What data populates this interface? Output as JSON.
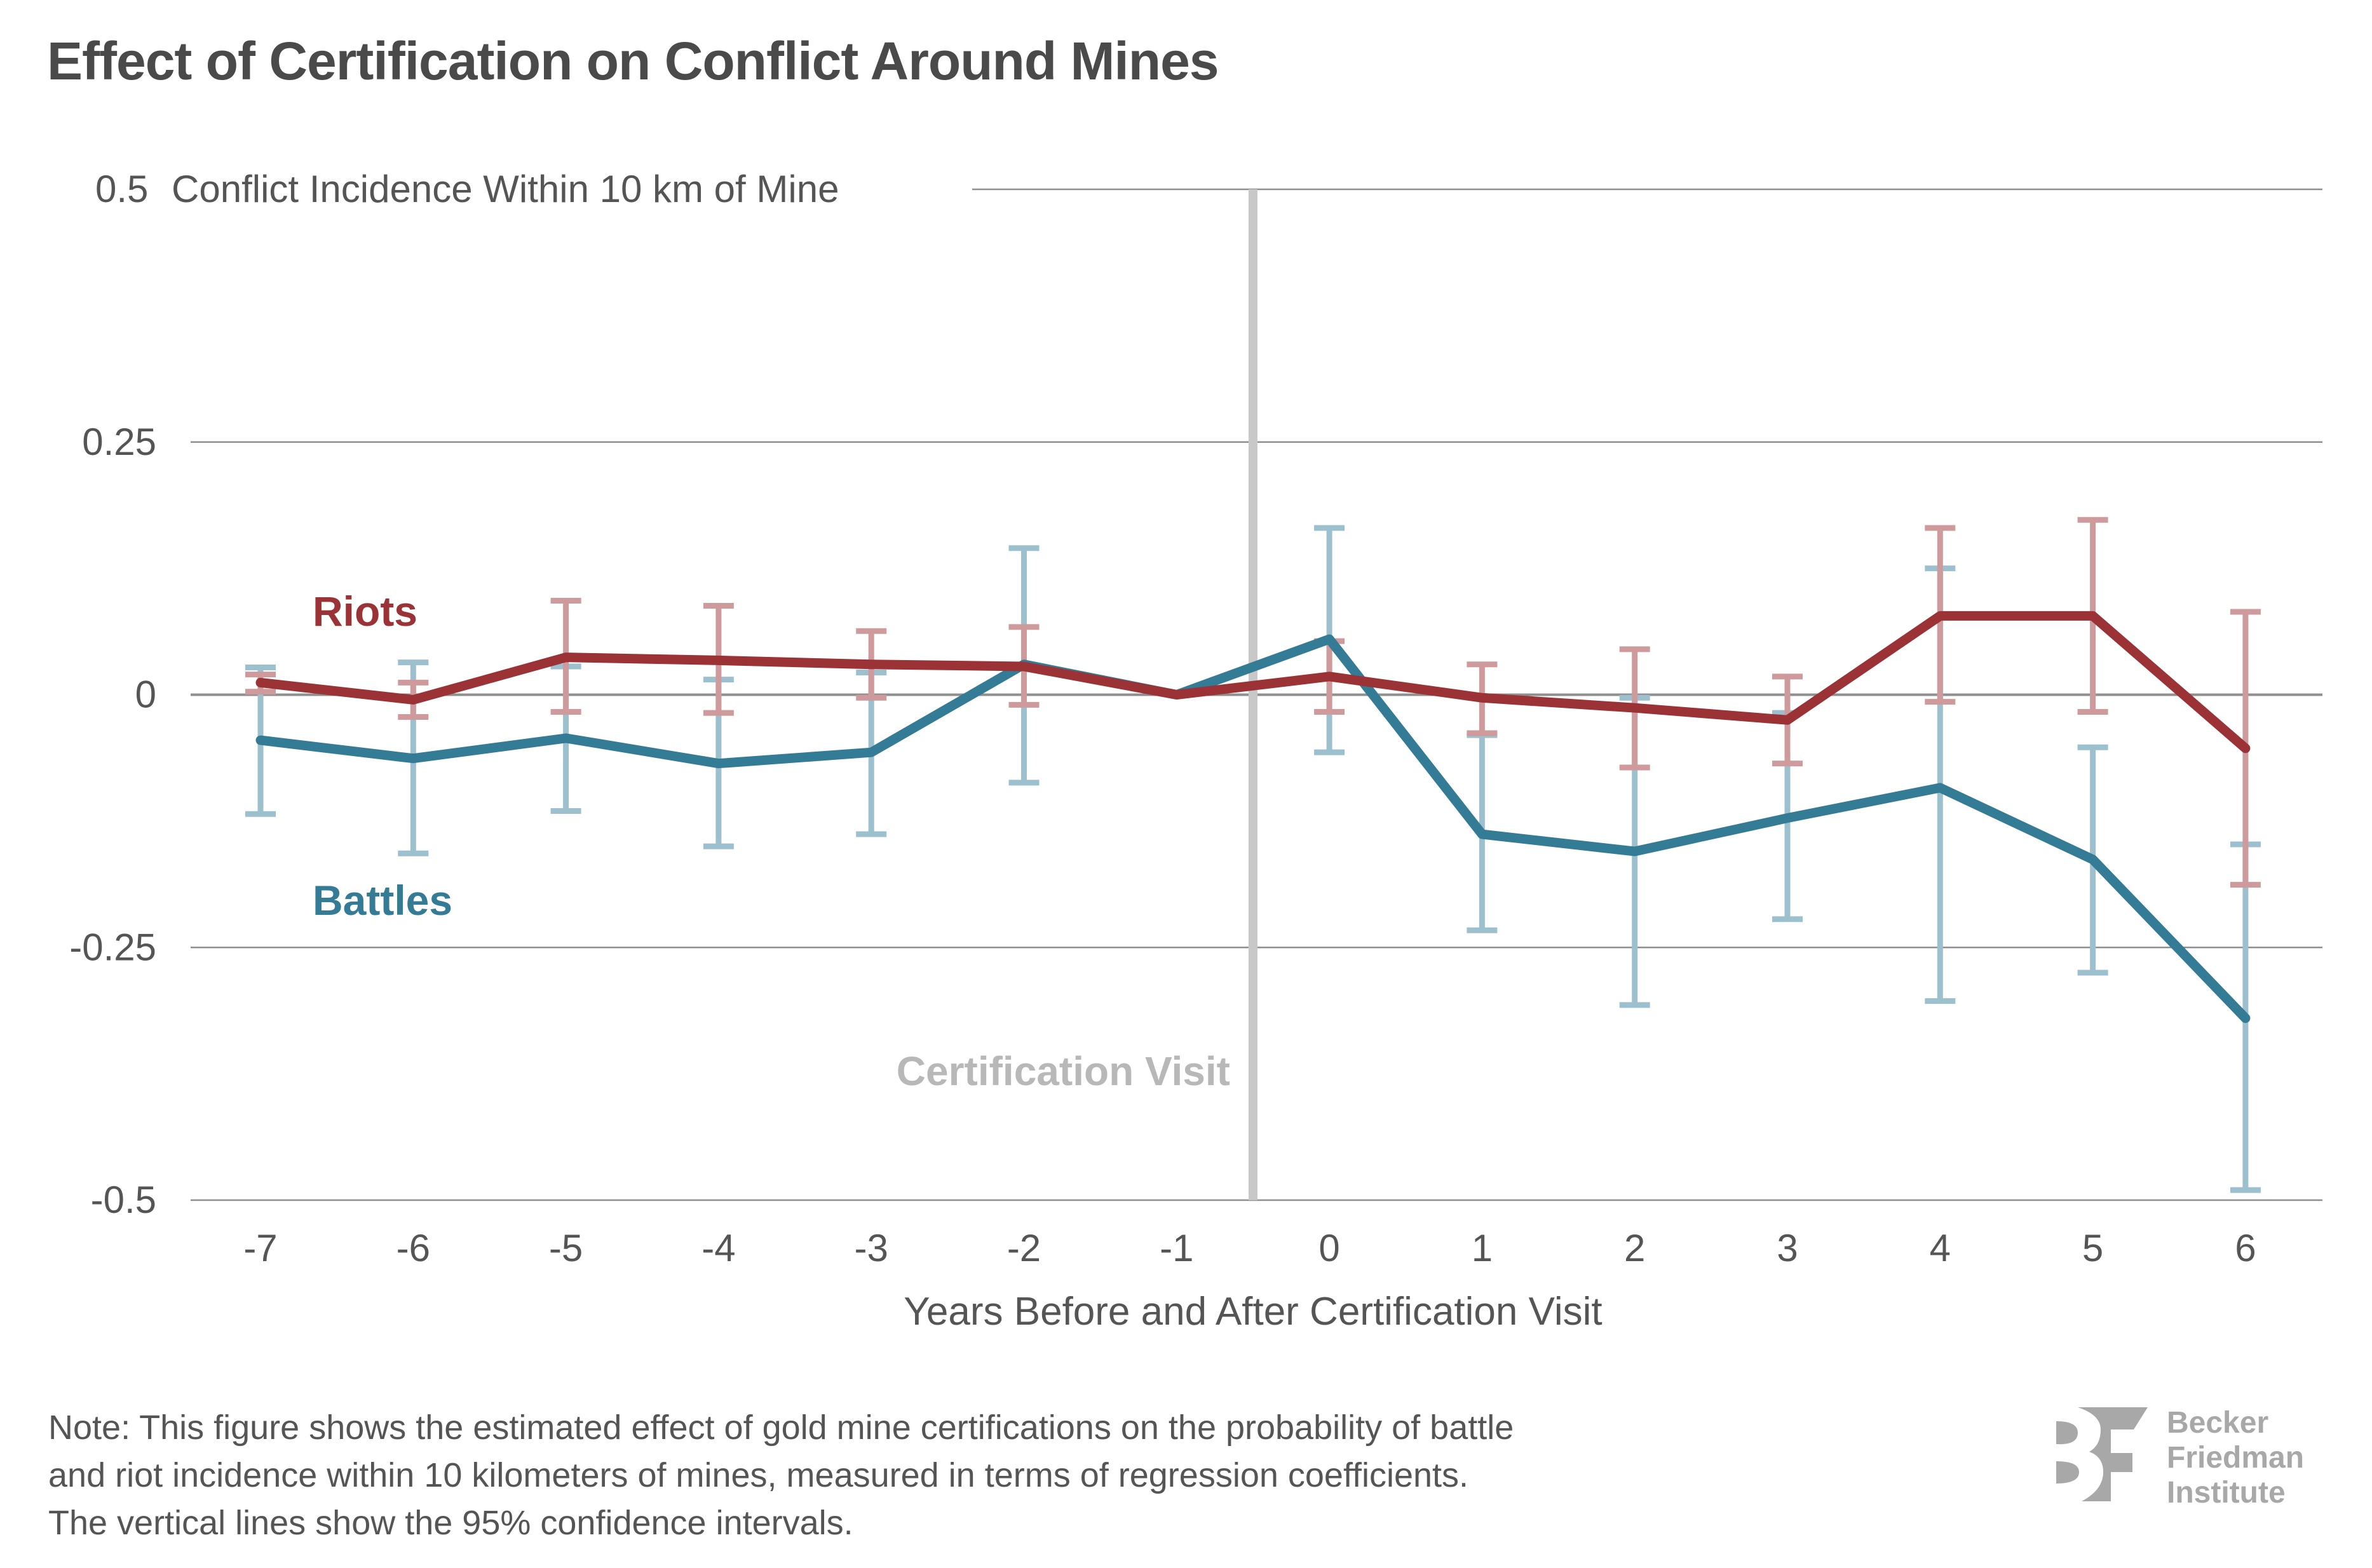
{
  "title": "Effect of Certification on Conflict Around Mines",
  "note": [
    "Note: This figure shows the estimated effect of gold mine certifications on the probability of battle",
    "and riot incidence within 10 kilometers of mines, measured in terms of regression coefficients.",
    "The vertical lines show the 95% confidence intervals."
  ],
  "logo": {
    "icon": "bf-monogram-icon",
    "lines": [
      "Becker",
      "Friedman",
      "Institute"
    ]
  },
  "colors": {
    "riots": "#9b3336",
    "riots_ci": "#cf9a9c",
    "battles": "#347b95",
    "battles_ci": "#9dc0cf",
    "grid": "#8f8f8f",
    "zero_line": "#8f8f8f",
    "event_line": "#c8c8c8",
    "text": "#555555"
  },
  "chart_data": {
    "type": "line",
    "title": "Effect of Certification on Conflict Around Mines",
    "xlabel": "Years Before and After Certification Visit",
    "ylabel": "Conflict Incidence Within 10 km of Mine",
    "x": [
      -7,
      -6,
      -5,
      -4,
      -3,
      -2,
      -1,
      0,
      1,
      2,
      3,
      4,
      5,
      6
    ],
    "x_tick_labels": [
      "-7",
      "-6",
      "-5",
      "-4",
      "-3",
      "-2",
      "-1",
      "0",
      "1",
      "2",
      "3",
      "4",
      "5",
      "6"
    ],
    "ylim": [
      -0.5,
      0.5
    ],
    "y_ticks": [
      0.5,
      0.25,
      0,
      -0.25,
      -0.5
    ],
    "y_tick_labels": [
      "0.5",
      "0.25",
      "0",
      "-0.25",
      "-0.5"
    ],
    "grid": true,
    "event_line": {
      "x": -0.5,
      "label": "Certification Visit"
    },
    "series": [
      {
        "name": "Riots",
        "label": "Riots",
        "values": [
          0.012,
          -0.005,
          0.037,
          0.034,
          0.03,
          0.028,
          0.0,
          0.018,
          -0.003,
          -0.013,
          -0.025,
          0.078,
          0.078,
          -0.053
        ],
        "ci_low": [
          0.003,
          -0.022,
          -0.017,
          -0.018,
          -0.003,
          -0.01,
          null,
          -0.017,
          -0.038,
          -0.072,
          -0.068,
          -0.007,
          -0.017,
          -0.188
        ],
        "ci_high": [
          0.02,
          0.012,
          0.093,
          0.088,
          0.063,
          0.067,
          null,
          0.053,
          0.03,
          0.045,
          0.018,
          0.165,
          0.173,
          0.082
        ]
      },
      {
        "name": "Battles",
        "label": "Battles",
        "values": [
          -0.045,
          -0.063,
          -0.043,
          -0.068,
          -0.057,
          0.03,
          0.0,
          0.055,
          -0.138,
          -0.155,
          -0.122,
          -0.092,
          -0.163,
          -0.32
        ],
        "ci_low": [
          -0.118,
          -0.157,
          -0.115,
          -0.15,
          -0.138,
          -0.087,
          null,
          -0.057,
          -0.233,
          -0.307,
          -0.222,
          -0.303,
          -0.275,
          -0.49
        ],
        "ci_high": [
          0.027,
          0.032,
          0.028,
          0.015,
          0.022,
          0.145,
          null,
          0.165,
          -0.04,
          -0.003,
          -0.018,
          0.125,
          -0.052,
          -0.148
        ]
      }
    ]
  }
}
